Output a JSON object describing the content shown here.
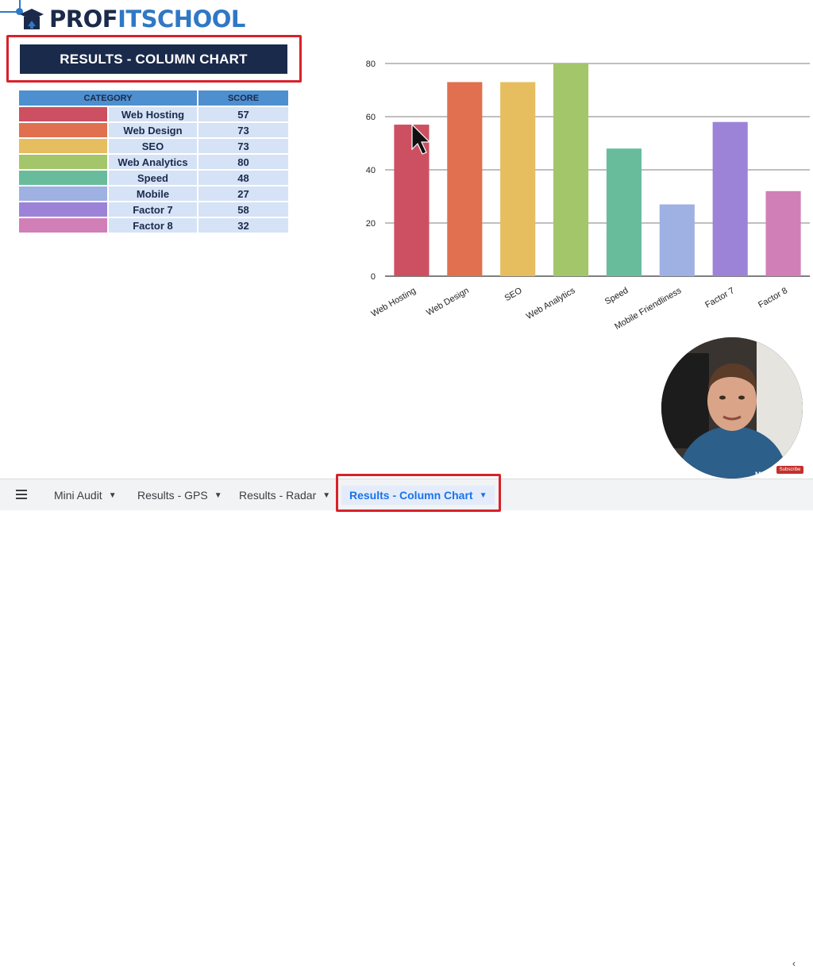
{
  "logo": {
    "part1": "PROF",
    "part2": "IT",
    "part3": "SCHOOL",
    "icon": "graduation-cap-logo-icon",
    "primary_color": "#1b2a4a",
    "accent_color": "#2f78c5"
  },
  "title": "RESULTS - COLUMN CHART",
  "table": {
    "headers": {
      "category": "CATEGORY",
      "score": "SCORE"
    },
    "rows": [
      {
        "name": "Web Hosting",
        "score": "57",
        "color": "#cc5061"
      },
      {
        "name": "Web Design",
        "score": "73",
        "color": "#e0704f"
      },
      {
        "name": "SEO",
        "score": "73",
        "color": "#e6bd5f"
      },
      {
        "name": "Web Analytics",
        "score": "80",
        "color": "#a3c66a"
      },
      {
        "name": "Speed",
        "score": "48",
        "color": "#68bc9c"
      },
      {
        "name": "Mobile",
        "score": "27",
        "color": "#9fb0e2"
      },
      {
        "name": "Factor 7",
        "score": "58",
        "color": "#9d83d8"
      },
      {
        "name": "Factor 8",
        "score": "32",
        "color": "#d17fb7"
      }
    ]
  },
  "chart_data": {
    "type": "bar",
    "categories": [
      "Web Hosting",
      "Web Design",
      "SEO",
      "Web Analytics",
      "Speed",
      "Mobile Friendliness",
      "Factor 7",
      "Factor 8"
    ],
    "values": [
      57,
      73,
      73,
      80,
      48,
      27,
      58,
      32
    ],
    "colors": [
      "#cc5061",
      "#e0704f",
      "#e6bd5f",
      "#a3c66a",
      "#68bc9c",
      "#9fb0e2",
      "#9d83d8",
      "#d17fb7"
    ],
    "yticks": [
      0,
      20,
      40,
      60,
      80
    ],
    "ylim": [
      0,
      80
    ],
    "grid": true,
    "title": "",
    "xlabel": "",
    "ylabel": ""
  },
  "bottom_bar": {
    "menu_icon": "hamburger-menu-icon",
    "tabs": [
      {
        "label": "Mini Audit",
        "active": false
      },
      {
        "label": "Results - GPS",
        "active": false
      },
      {
        "label": "Results - Radar",
        "active": false
      },
      {
        "label": "Results - Column Chart",
        "active": true
      }
    ],
    "caret_icon": "caret-down-icon",
    "collapse_icon": "chevron-left-icon"
  },
  "webcam": {
    "subscribe_label": "Subscribe",
    "shirt_text": "MEASURE"
  }
}
